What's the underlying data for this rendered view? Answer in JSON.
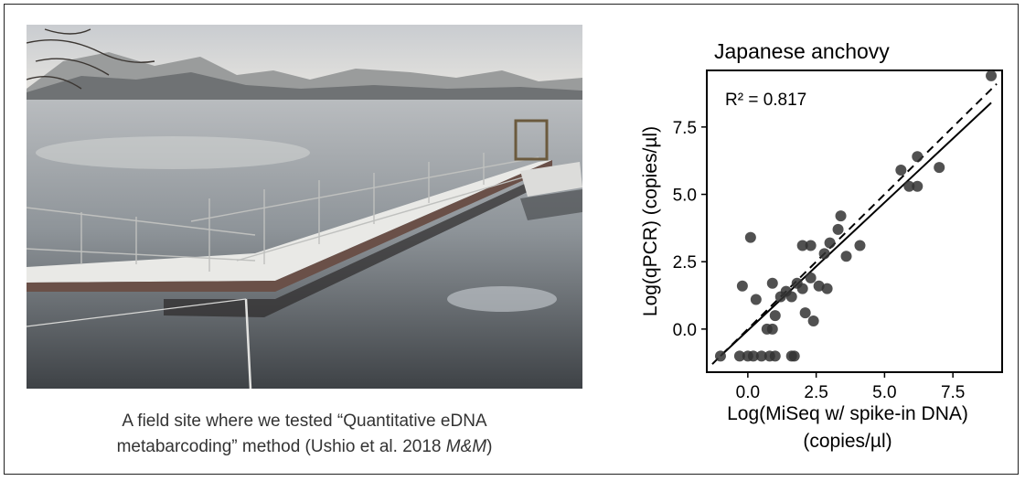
{
  "photo": {
    "alt": "Snowy floating pier on a calm lake with misty mountains"
  },
  "caption": {
    "line1": "A field site where we tested “Quantitative eDNA",
    "line2_prefix": "metabarcoding” method (Ushio et al. 2018 ",
    "line2_italic": "M&M",
    "line2_suffix": ")"
  },
  "chart_data": {
    "type": "scatter",
    "title": "Japanese anchovy",
    "xlabel_line1": "Log(MiSeq w/ spike-in DNA)",
    "xlabel_line2": "(copies/µl)",
    "ylabel": "Log(qPCR) (copies/µl)",
    "annotation": "R² = 0.817",
    "xlim": [
      -1.5,
      9.3
    ],
    "ylim": [
      -1.6,
      9.6
    ],
    "xticks": [
      0.0,
      2.5,
      5.0,
      7.5
    ],
    "xtick_labels": [
      "0.0",
      "2.5",
      "5.0",
      "7.5"
    ],
    "yticks": [
      0.0,
      2.5,
      5.0,
      7.5
    ],
    "ytick_labels": [
      "0.0",
      "2.5",
      "5.0",
      "7.5"
    ],
    "grid": false,
    "points": [
      {
        "x": -1.0,
        "y": -1.0
      },
      {
        "x": -0.3,
        "y": -1.0
      },
      {
        "x": 0.0,
        "y": -1.0
      },
      {
        "x": 0.2,
        "y": -1.0
      },
      {
        "x": 0.5,
        "y": -1.0
      },
      {
        "x": 0.8,
        "y": -1.0
      },
      {
        "x": 1.0,
        "y": -1.0
      },
      {
        "x": 1.7,
        "y": -1.0
      },
      {
        "x": 1.6,
        "y": -1.0
      },
      {
        "x": 0.1,
        "y": 3.4
      },
      {
        "x": -0.2,
        "y": 1.6
      },
      {
        "x": 0.3,
        "y": 1.1
      },
      {
        "x": 0.7,
        "y": 0.0
      },
      {
        "x": 0.9,
        "y": 0.0
      },
      {
        "x": 1.0,
        "y": 0.5
      },
      {
        "x": 0.9,
        "y": 1.7
      },
      {
        "x": 1.2,
        "y": 1.2
      },
      {
        "x": 1.4,
        "y": 1.4
      },
      {
        "x": 1.6,
        "y": 1.2
      },
      {
        "x": 1.8,
        "y": 1.7
      },
      {
        "x": 2.0,
        "y": 3.1
      },
      {
        "x": 2.3,
        "y": 3.1
      },
      {
        "x": 2.0,
        "y": 1.5
      },
      {
        "x": 2.3,
        "y": 1.9
      },
      {
        "x": 2.1,
        "y": 0.6
      },
      {
        "x": 2.4,
        "y": 0.3
      },
      {
        "x": 2.6,
        "y": 1.6
      },
      {
        "x": 2.9,
        "y": 1.5
      },
      {
        "x": 2.8,
        "y": 2.8
      },
      {
        "x": 3.0,
        "y": 3.2
      },
      {
        "x": 3.3,
        "y": 3.7
      },
      {
        "x": 3.4,
        "y": 4.2
      },
      {
        "x": 3.6,
        "y": 2.7
      },
      {
        "x": 4.1,
        "y": 3.1
      },
      {
        "x": 5.6,
        "y": 5.9
      },
      {
        "x": 5.9,
        "y": 5.3
      },
      {
        "x": 6.2,
        "y": 6.4
      },
      {
        "x": 6.2,
        "y": 5.3
      },
      {
        "x": 7.0,
        "y": 6.0
      },
      {
        "x": 8.9,
        "y": 9.4
      }
    ],
    "fit_line": {
      "x": [
        -1.0,
        8.9
      ],
      "y": [
        -1.0,
        8.4
      ]
    },
    "identity_line": {
      "x": [
        -1.3,
        9.1
      ],
      "y": [
        -1.3,
        9.1
      ]
    }
  }
}
